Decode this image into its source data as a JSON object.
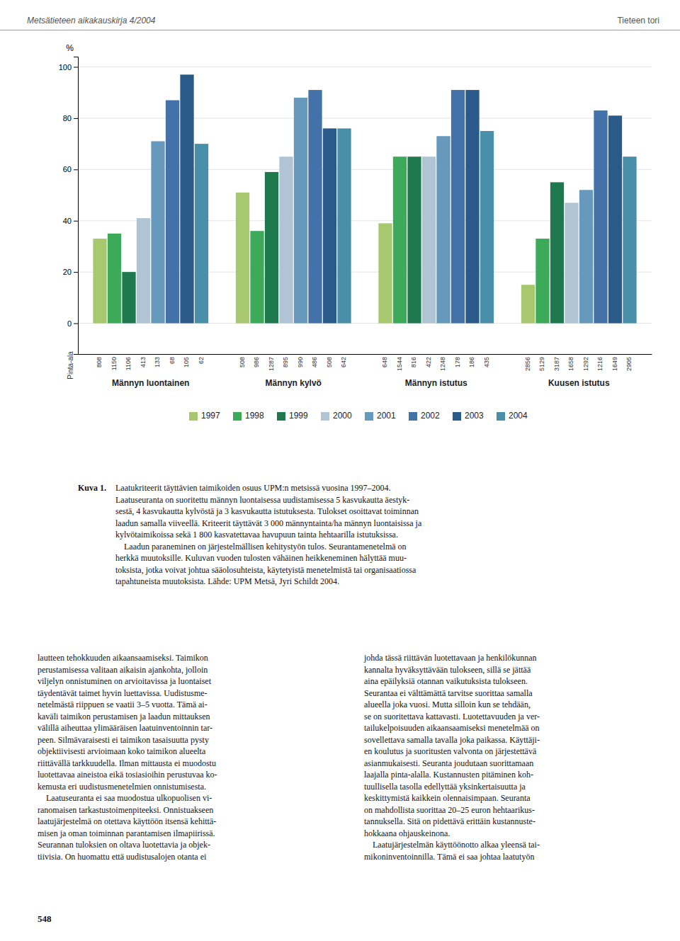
{
  "chart_data": {
    "type": "bar",
    "ylabel": "%",
    "categories": [
      "Männyn luontainen",
      "Männyn kylvö",
      "Männyn istutus",
      "Kuusen istutus"
    ],
    "series": [
      {
        "name": "1997",
        "color": "#a8c870",
        "values": [
          33,
          51,
          39,
          15
        ],
        "pinta_ala": [
          808,
          508,
          648,
          2856
        ]
      },
      {
        "name": "1998",
        "color": "#3daa5a",
        "values": [
          35,
          36,
          65,
          33
        ],
        "pinta_ala": [
          1150,
          986,
          1544,
          5129
        ]
      },
      {
        "name": "1999",
        "color": "#1e7a4e",
        "values": [
          20,
          59,
          65,
          55
        ],
        "pinta_ala": [
          1106,
          1287,
          816,
          3187
        ]
      },
      {
        "name": "2000",
        "color": "#b0c4d4",
        "values": [
          41,
          65,
          65,
          47
        ],
        "pinta_ala": [
          413,
          895,
          422,
          1658
        ]
      },
      {
        "name": "2001",
        "color": "#6699bb",
        "values": [
          71,
          88,
          73,
          52
        ],
        "pinta_ala": [
          133,
          990,
          1248,
          1292
        ]
      },
      {
        "name": "2002",
        "color": "#4472a8",
        "values": [
          87,
          91,
          91,
          83
        ],
        "pinta_ala": [
          68,
          486,
          178,
          1216
        ]
      },
      {
        "name": "2003",
        "color": "#2a5a8a",
        "values": [
          97,
          76,
          91,
          81
        ],
        "pinta_ala": [
          105,
          508,
          186,
          1649
        ]
      },
      {
        "name": "2004",
        "color": "#4a8faa",
        "values": [
          70,
          76,
          75,
          65
        ],
        "pinta_ala": [
          62,
          642,
          435,
          2905
        ]
      }
    ],
    "ylim": [
      -12,
      104
    ],
    "yticks": [
      0,
      20,
      40,
      60,
      80,
      100
    ],
    "grid": true,
    "legend": "bottom",
    "annotations": [
      "Metsätieteen aikakauskirja 4/2004",
      "Tieteen tori",
      "Pinta-ala",
      "Kuva 1.",
      "Laatukriteerit täyttävien taimikoiden osuus UPM:n metsissä vuosina 1997–2004.\nLaatuseuranta on suoritettu männyn luontaisessa uudistamisessa 5 kasvukautta äestyk-\nsestä, 4 kasvukautta kylvöstä ja 3 kasvukautta istutuksesta. Tulokset osoittavat toiminnan\nlaadun samalla viiveellä. Kriteerit täyttävät 3 000 männyntainta/ha männyn luontaisissa ja\nkylvötaimikoissa sekä 1 800 kasvatettavaa havupuun tainta hehtaarilla istutuksissa.\n    Laadun paraneminen on järjestelmällisen kehitystyön tulos. Seurantamenetelmä on\nherkkä muutoksille. Kuluvan vuoden tulosten vähäinen heikkeneminen hälyttää muu-\ntoksista, jotka voivat johtua sääolosuhteista, käytetyistä menetelmistä tai organisaatiossa\ntapahtuneista muutoksista. Lähde: UPM Metsä, Jyri Schildt 2004.",
      "lautteen tehokkuuden aikaansaamiseksi. Taimikon\nperustamisessa valitaan aikaisin ajankohta, jolloin\nviljelyn onnistuminen on arvioitavissa ja luontaiset\ntäydentävät taimet hyvin luettavissa. Uudistusme-\nnetelmästä riippuen se vaatii 3–5 vuotta. Tämä ai-\nkaväli taimikon perustamisen ja laadun mittauksen\nvälillä aiheuttaa ylimääräisen laatuinventoinnin tar-\npeen. Silmävaraisesti ei taimikon tasaisuutta pysty\nobjektiivisesti arvioimaan koko taimikon alueelta\nriittävällä tarkkuudella. Ilman mittausta ei muodostu\nluotettavaa aineistoa eikä tosiasioihin perustuvaa ko-\nkemusta eri uudistusmenetelmien onnistumisesta.\n    Laatuseuranta ei saa muodostua ulkopuolisen vi-\nranomaisen tarkastustoimenpiteeksi. Onnistuakseen\nlaatujärjestelmä on otettava käyttöön itsensä kehittä-\nmisen ja oman toiminnan parantamisen ilmapiirissä.\nSeurannan tuloksien on oltava luotettavia ja objek-\ntiivisia. On huomattu että uudistusalojen otanta ei",
      "johda tässä riittävän luotettavaan ja henkilökunnan\nkannalta hyväksyttävään tulokseen, sillä se jättää\naina epäilyksiä otannan vaikutuksista tulokseen.\nSeurantaa ei välttämättä tarvitse suorittaa samalla\nalueella joka vuosi. Mutta silloin kun se tehdään,\nse on suoritettava kattavasti. Luotettavuuden ja ver-\ntailukelpoisuuden aikaansaamiseksi menetelmää on\nsovellettava samalla tavalla joka paikassa. Käyttäji-\nen koulutus ja suoritusten valvonta on järjestettävä\nasianmukaisesti. Seuranta joudutaan suorittamaan\nlaajalla pinta-alalla. Kustannusten pitäminen koh-\ntuullisella tasolla edellyttää yksinkertaisuutta ja\nkeskittymistä kaikkein olennaisimpaan. Seuranta\non mahdollista suorittaa 20–25 euron hehtaarikus-\ntannuksella. Sitä on pidettävä erittäin kustannuste-\nhokkaana ohjauskeinona.\n    Laatujärjestelmän käyttöönotto alkaa yleensä tai-\nmikoninventoinnilla. Tämä ei saa johtaa laatutyön",
      "548"
    ]
  }
}
